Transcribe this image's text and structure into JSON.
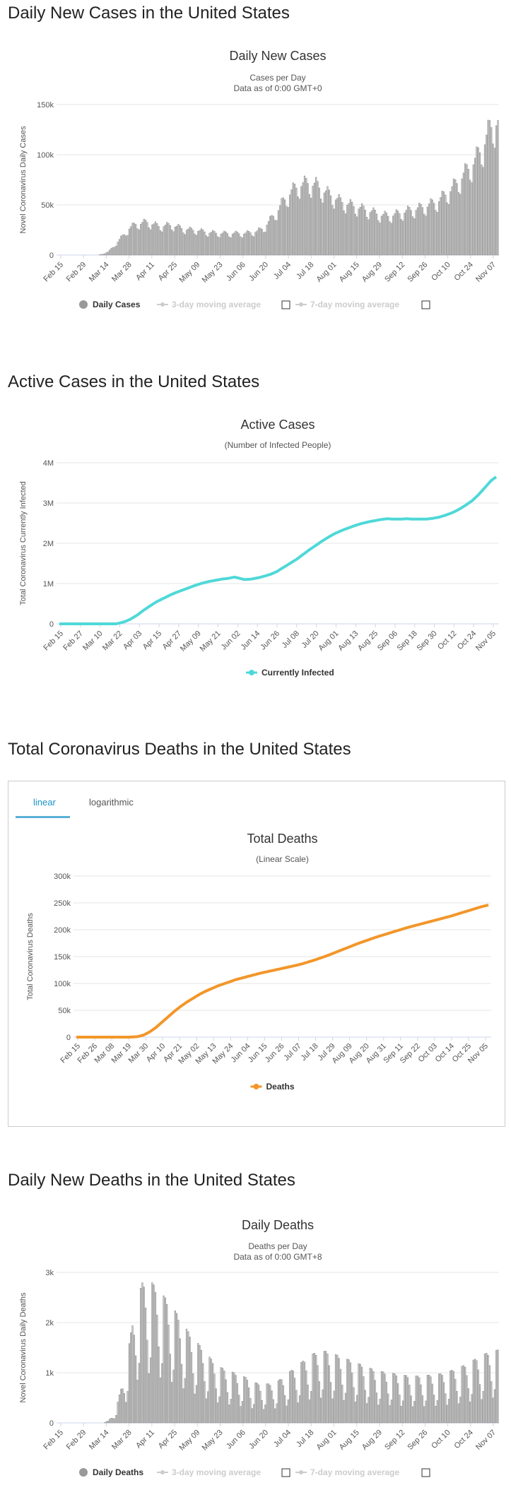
{
  "sections": {
    "daily_cases_title": "Daily New Cases in the United States",
    "active_title": "Active Cases in the United States",
    "deaths_title": "Total Coronavirus Deaths in the United States",
    "daily_deaths_title": "Daily New Deaths in the United States"
  },
  "tabs": {
    "linear": "linear",
    "logarithmic": "logarithmic"
  },
  "colors": {
    "bar": "#c6c6c6",
    "bar_stroke": "#8a8a8a",
    "active_line": "#4fd8d8",
    "deaths_line": "#f2962a",
    "grid": "#e6e6e6"
  },
  "chart_data": [
    {
      "id": "daily_cases",
      "type": "bar",
      "title": "Daily New Cases",
      "subtitle": "Cases per Day",
      "subtitle2": "Data as of 0:00 GMT+0",
      "ylabel": "Novel Coronavirus Daily Cases",
      "ylim": [
        0,
        150000
      ],
      "yticks": [
        0,
        50000,
        100000,
        150000
      ],
      "ytick_labels": [
        "0",
        "50k",
        "100k",
        "150k"
      ],
      "xtick_labels": [
        "Feb 15",
        "Feb 29",
        "Mar 14",
        "Mar 28",
        "Apr 11",
        "Apr 25",
        "May 09",
        "May 23",
        "Jun 06",
        "Jun 20",
        "Jul 04",
        "Jul 18",
        "Aug 01",
        "Aug 15",
        "Aug 29",
        "Sep 12",
        "Sep 26",
        "Oct 10",
        "Oct 24",
        "Nov 07"
      ],
      "n_days": 270,
      "legend": {
        "main": "Daily Cases",
        "ma3": "3-day moving average",
        "ma7": "7-day moving average"
      },
      "anchors": [
        [
          0,
          0
        ],
        [
          25,
          0
        ],
        [
          28,
          1000
        ],
        [
          31,
          3000
        ],
        [
          35,
          9000
        ],
        [
          38,
          15000
        ],
        [
          41,
          20000
        ],
        [
          44,
          26000
        ],
        [
          48,
          30000
        ],
        [
          55,
          32000
        ],
        [
          62,
          28000
        ],
        [
          70,
          29000
        ],
        [
          78,
          25000
        ],
        [
          85,
          24000
        ],
        [
          92,
          22000
        ],
        [
          100,
          21000
        ],
        [
          108,
          21000
        ],
        [
          115,
          21000
        ],
        [
          122,
          23000
        ],
        [
          126,
          26000
        ],
        [
          130,
          34000
        ],
        [
          134,
          42000
        ],
        [
          138,
          52000
        ],
        [
          143,
          62000
        ],
        [
          148,
          68000
        ],
        [
          153,
          70000
        ],
        [
          158,
          68000
        ],
        [
          163,
          62000
        ],
        [
          168,
          57000
        ],
        [
          173,
          52000
        ],
        [
          180,
          48000
        ],
        [
          186,
          45000
        ],
        [
          192,
          42000
        ],
        [
          197,
          39000
        ],
        [
          202,
          38000
        ],
        [
          208,
          40000
        ],
        [
          214,
          43000
        ],
        [
          220,
          45000
        ],
        [
          226,
          48000
        ],
        [
          232,
          52000
        ],
        [
          238,
          60000
        ],
        [
          244,
          70000
        ],
        [
          250,
          82000
        ],
        [
          255,
          92000
        ],
        [
          258,
          100000
        ],
        [
          261,
          110000
        ],
        [
          264,
          122000
        ],
        [
          267,
          130000
        ],
        [
          269,
          128000
        ]
      ],
      "weekly_pattern": [
        0.87,
        0.82,
        1.0,
        1.05,
        1.14,
        1.1,
        1.02
      ]
    },
    {
      "id": "active",
      "type": "line",
      "title": "Active Cases",
      "subtitle": "(Number of Infected People)",
      "ylabel": "Total Coronavirus Currently Infected",
      "ylim": [
        0,
        4000000
      ],
      "yticks": [
        0,
        1000000,
        2000000,
        3000000,
        4000000
      ],
      "ytick_labels": [
        "0",
        "1M",
        "2M",
        "3M",
        "4M"
      ],
      "xtick_labels": [
        "Feb 15",
        "Feb 27",
        "Mar 10",
        "Mar 22",
        "Apr 03",
        "Apr 15",
        "Apr 27",
        "May 09",
        "May 21",
        "Jun 02",
        "Jun 14",
        "Jun 26",
        "Jul 08",
        "Jul 20",
        "Aug 01",
        "Aug 13",
        "Aug 25",
        "Sep 06",
        "Sep 18",
        "Sep 30",
        "Oct 12",
        "Oct 24",
        "Nov 05"
      ],
      "n_days": 270,
      "legend": "Currently Infected",
      "points": [
        [
          0,
          0
        ],
        [
          35,
          0
        ],
        [
          40,
          50000
        ],
        [
          44,
          120000
        ],
        [
          48,
          220000
        ],
        [
          52,
          340000
        ],
        [
          56,
          450000
        ],
        [
          60,
          550000
        ],
        [
          64,
          630000
        ],
        [
          68,
          710000
        ],
        [
          72,
          780000
        ],
        [
          76,
          840000
        ],
        [
          80,
          900000
        ],
        [
          84,
          960000
        ],
        [
          88,
          1010000
        ],
        [
          92,
          1050000
        ],
        [
          96,
          1080000
        ],
        [
          100,
          1110000
        ],
        [
          104,
          1130000
        ],
        [
          108,
          1160000
        ],
        [
          111,
          1130000
        ],
        [
          114,
          1100000
        ],
        [
          118,
          1110000
        ],
        [
          122,
          1140000
        ],
        [
          126,
          1180000
        ],
        [
          130,
          1230000
        ],
        [
          134,
          1300000
        ],
        [
          138,
          1400000
        ],
        [
          142,
          1500000
        ],
        [
          146,
          1600000
        ],
        [
          150,
          1720000
        ],
        [
          154,
          1840000
        ],
        [
          158,
          1950000
        ],
        [
          162,
          2060000
        ],
        [
          166,
          2160000
        ],
        [
          170,
          2250000
        ],
        [
          174,
          2320000
        ],
        [
          178,
          2380000
        ],
        [
          182,
          2440000
        ],
        [
          186,
          2490000
        ],
        [
          190,
          2530000
        ],
        [
          194,
          2560000
        ],
        [
          198,
          2590000
        ],
        [
          202,
          2610000
        ],
        [
          206,
          2600000
        ],
        [
          210,
          2600000
        ],
        [
          214,
          2610000
        ],
        [
          218,
          2600000
        ],
        [
          222,
          2600000
        ],
        [
          226,
          2600000
        ],
        [
          230,
          2620000
        ],
        [
          234,
          2650000
        ],
        [
          238,
          2700000
        ],
        [
          242,
          2760000
        ],
        [
          246,
          2840000
        ],
        [
          250,
          2940000
        ],
        [
          254,
          3050000
        ],
        [
          258,
          3200000
        ],
        [
          262,
          3380000
        ],
        [
          266,
          3560000
        ],
        [
          269,
          3650000
        ]
      ]
    },
    {
      "id": "total_deaths",
      "type": "line",
      "title": "Total Deaths",
      "subtitle": "(Linear Scale)",
      "ylabel": "Total Coronavirus Deaths",
      "ylim": [
        0,
        300000
      ],
      "yticks": [
        0,
        50000,
        100000,
        150000,
        200000,
        250000,
        300000
      ],
      "ytick_labels": [
        "0",
        "50k",
        "100k",
        "150k",
        "200k",
        "250k",
        "300k"
      ],
      "xtick_labels": [
        "Feb 15",
        "Feb 26",
        "Mar 08",
        "Mar 19",
        "Mar 30",
        "Apr 10",
        "Apr 21",
        "May 02",
        "May 13",
        "May 24",
        "Jun 04",
        "Jun 15",
        "Jun 26",
        "Jul 07",
        "Jul 18",
        "Jul 29",
        "Aug 09",
        "Aug 20",
        "Aug 31",
        "Sep 11",
        "Sep 22",
        "Oct 03",
        "Oct 14",
        "Oct 25",
        "Nov 05"
      ],
      "n_days": 270,
      "legend": "Deaths",
      "points": [
        [
          0,
          0
        ],
        [
          35,
          0
        ],
        [
          40,
          1000
        ],
        [
          44,
          4000
        ],
        [
          48,
          10000
        ],
        [
          52,
          18000
        ],
        [
          56,
          28000
        ],
        [
          60,
          38000
        ],
        [
          64,
          48000
        ],
        [
          68,
          57000
        ],
        [
          72,
          65000
        ],
        [
          76,
          72000
        ],
        [
          80,
          79000
        ],
        [
          84,
          85000
        ],
        [
          88,
          90000
        ],
        [
          92,
          95000
        ],
        [
          96,
          99000
        ],
        [
          100,
          103000
        ],
        [
          104,
          107000
        ],
        [
          108,
          110000
        ],
        [
          112,
          113000
        ],
        [
          116,
          116000
        ],
        [
          120,
          119000
        ],
        [
          124,
          121500
        ],
        [
          128,
          124000
        ],
        [
          132,
          126500
        ],
        [
          136,
          129000
        ],
        [
          140,
          131500
        ],
        [
          144,
          134000
        ],
        [
          148,
          137000
        ],
        [
          152,
          140500
        ],
        [
          156,
          144000
        ],
        [
          160,
          148000
        ],
        [
          164,
          152000
        ],
        [
          168,
          156500
        ],
        [
          172,
          161000
        ],
        [
          176,
          165500
        ],
        [
          180,
          170000
        ],
        [
          184,
          174500
        ],
        [
          188,
          178500
        ],
        [
          192,
          182500
        ],
        [
          196,
          186500
        ],
        [
          200,
          190000
        ],
        [
          204,
          193500
        ],
        [
          208,
          197000
        ],
        [
          212,
          200500
        ],
        [
          216,
          204000
        ],
        [
          220,
          207000
        ],
        [
          224,
          210000
        ],
        [
          228,
          213000
        ],
        [
          232,
          216000
        ],
        [
          236,
          219000
        ],
        [
          240,
          222000
        ],
        [
          244,
          225000
        ],
        [
          248,
          228500
        ],
        [
          252,
          232000
        ],
        [
          256,
          235500
        ],
        [
          260,
          239000
        ],
        [
          264,
          242500
        ],
        [
          269,
          246000
        ]
      ]
    },
    {
      "id": "daily_deaths",
      "type": "bar",
      "title": "Daily Deaths",
      "subtitle": "Deaths per Day",
      "subtitle2": "Data as of 0:00 GMT+8",
      "ylabel": "Novel Coronavirus Daily Deaths",
      "ylim": [
        0,
        3000
      ],
      "yticks": [
        0,
        1000,
        2000,
        3000
      ],
      "ytick_labels": [
        "0",
        "1k",
        "2k",
        "3k"
      ],
      "xtick_labels": [
        "Feb 15",
        "Feb 29",
        "Mar 14",
        "Mar 28",
        "Apr 11",
        "Apr 25",
        "May 09",
        "May 23",
        "Jun 06",
        "Jun 20",
        "Jul 04",
        "Jul 18",
        "Aug 01",
        "Aug 15",
        "Aug 29",
        "Sep 12",
        "Sep 26",
        "Oct 10",
        "Oct 24",
        "Nov 07"
      ],
      "n_days": 270,
      "legend": {
        "main": "Daily Deaths",
        "ma3": "3-day moving average",
        "ma7": "7-day moving average"
      },
      "anchors": [
        [
          0,
          0
        ],
        [
          28,
          0
        ],
        [
          31,
          30
        ],
        [
          34,
          120
        ],
        [
          37,
          320
        ],
        [
          40,
          650
        ],
        [
          43,
          1050
        ],
        [
          46,
          1550
        ],
        [
          49,
          1900
        ],
        [
          52,
          2150
        ],
        [
          55,
          2200
        ],
        [
          58,
          2150
        ],
        [
          61,
          2050
        ],
        [
          65,
          1950
        ],
        [
          70,
          1800
        ],
        [
          75,
          1600
        ],
        [
          80,
          1400
        ],
        [
          85,
          1250
        ],
        [
          90,
          1100
        ],
        [
          95,
          950
        ],
        [
          100,
          850
        ],
        [
          105,
          800
        ],
        [
          110,
          750
        ],
        [
          115,
          700
        ],
        [
          120,
          620
        ],
        [
          125,
          600
        ],
        [
          130,
          600
        ],
        [
          135,
          650
        ],
        [
          140,
          750
        ],
        [
          145,
          850
        ],
        [
          150,
          950
        ],
        [
          155,
          1050
        ],
        [
          160,
          1100
        ],
        [
          165,
          1100
        ],
        [
          170,
          1050
        ],
        [
          175,
          1000
        ],
        [
          180,
          950
        ],
        [
          185,
          900
        ],
        [
          190,
          850
        ],
        [
          195,
          800
        ],
        [
          200,
          780
        ],
        [
          205,
          760
        ],
        [
          210,
          740
        ],
        [
          215,
          720
        ],
        [
          220,
          720
        ],
        [
          225,
          730
        ],
        [
          230,
          740
        ],
        [
          235,
          760
        ],
        [
          240,
          800
        ],
        [
          245,
          850
        ],
        [
          250,
          900
        ],
        [
          255,
          980
        ],
        [
          260,
          1050
        ],
        [
          265,
          1100
        ],
        [
          269,
          1120
        ]
      ],
      "weekly_pattern": [
        0.45,
        0.6,
        1.3,
        1.3,
        1.25,
        1.05,
        0.75
      ]
    }
  ]
}
